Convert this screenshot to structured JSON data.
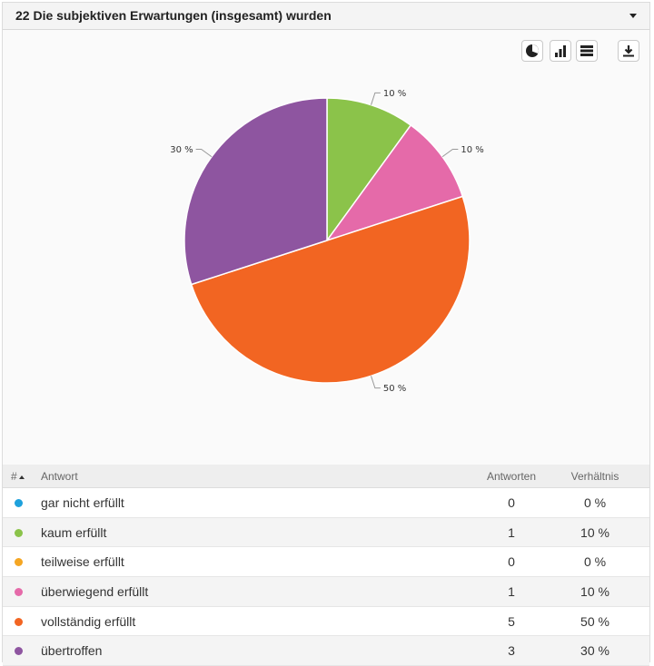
{
  "header": {
    "title": "22 Die subjektiven Erwartungen (insgesamt) wurden"
  },
  "toolbar": {
    "buttons": [
      "pie-chart-icon",
      "bar-chart-icon",
      "table-icon",
      "download-icon"
    ]
  },
  "table": {
    "columns": {
      "num": "#",
      "answer": "Antwort",
      "count": "Antworten",
      "ratio": "Verhältnis"
    },
    "rows": [
      {
        "label": "gar nicht erfüllt",
        "count": "0",
        "pct": "0 %",
        "color": "#1ea1dc"
      },
      {
        "label": "kaum erfüllt",
        "count": "1",
        "pct": "10 %",
        "color": "#8bc34a"
      },
      {
        "label": "teilweise erfüllt",
        "count": "0",
        "pct": "0 %",
        "color": "#f5a623"
      },
      {
        "label": "überwiegend erfüllt",
        "count": "1",
        "pct": "10 %",
        "color": "#e56aa9"
      },
      {
        "label": "vollständig erfüllt",
        "count": "5",
        "pct": "50 %",
        "color": "#f26522"
      },
      {
        "label": "übertroffen",
        "count": "3",
        "pct": "30 %",
        "color": "#8e55a0"
      }
    ]
  },
  "chart_data": {
    "type": "pie",
    "title": "22 Die subjektiven Erwartungen (insgesamt) wurden",
    "categories": [
      "gar nicht erfüllt",
      "kaum erfüllt",
      "teilweise erfüllt",
      "überwiegend erfüllt",
      "vollständig erfüllt",
      "übertroffen"
    ],
    "values": [
      0,
      10,
      0,
      10,
      50,
      30
    ],
    "counts": [
      0,
      1,
      0,
      1,
      5,
      3
    ],
    "colors": [
      "#1ea1dc",
      "#8bc34a",
      "#f5a623",
      "#e56aa9",
      "#f26522",
      "#8e55a0"
    ],
    "slice_labels": [
      "",
      "10 %",
      "",
      "10 %",
      "50 %",
      "30 %"
    ],
    "legend": "none"
  }
}
